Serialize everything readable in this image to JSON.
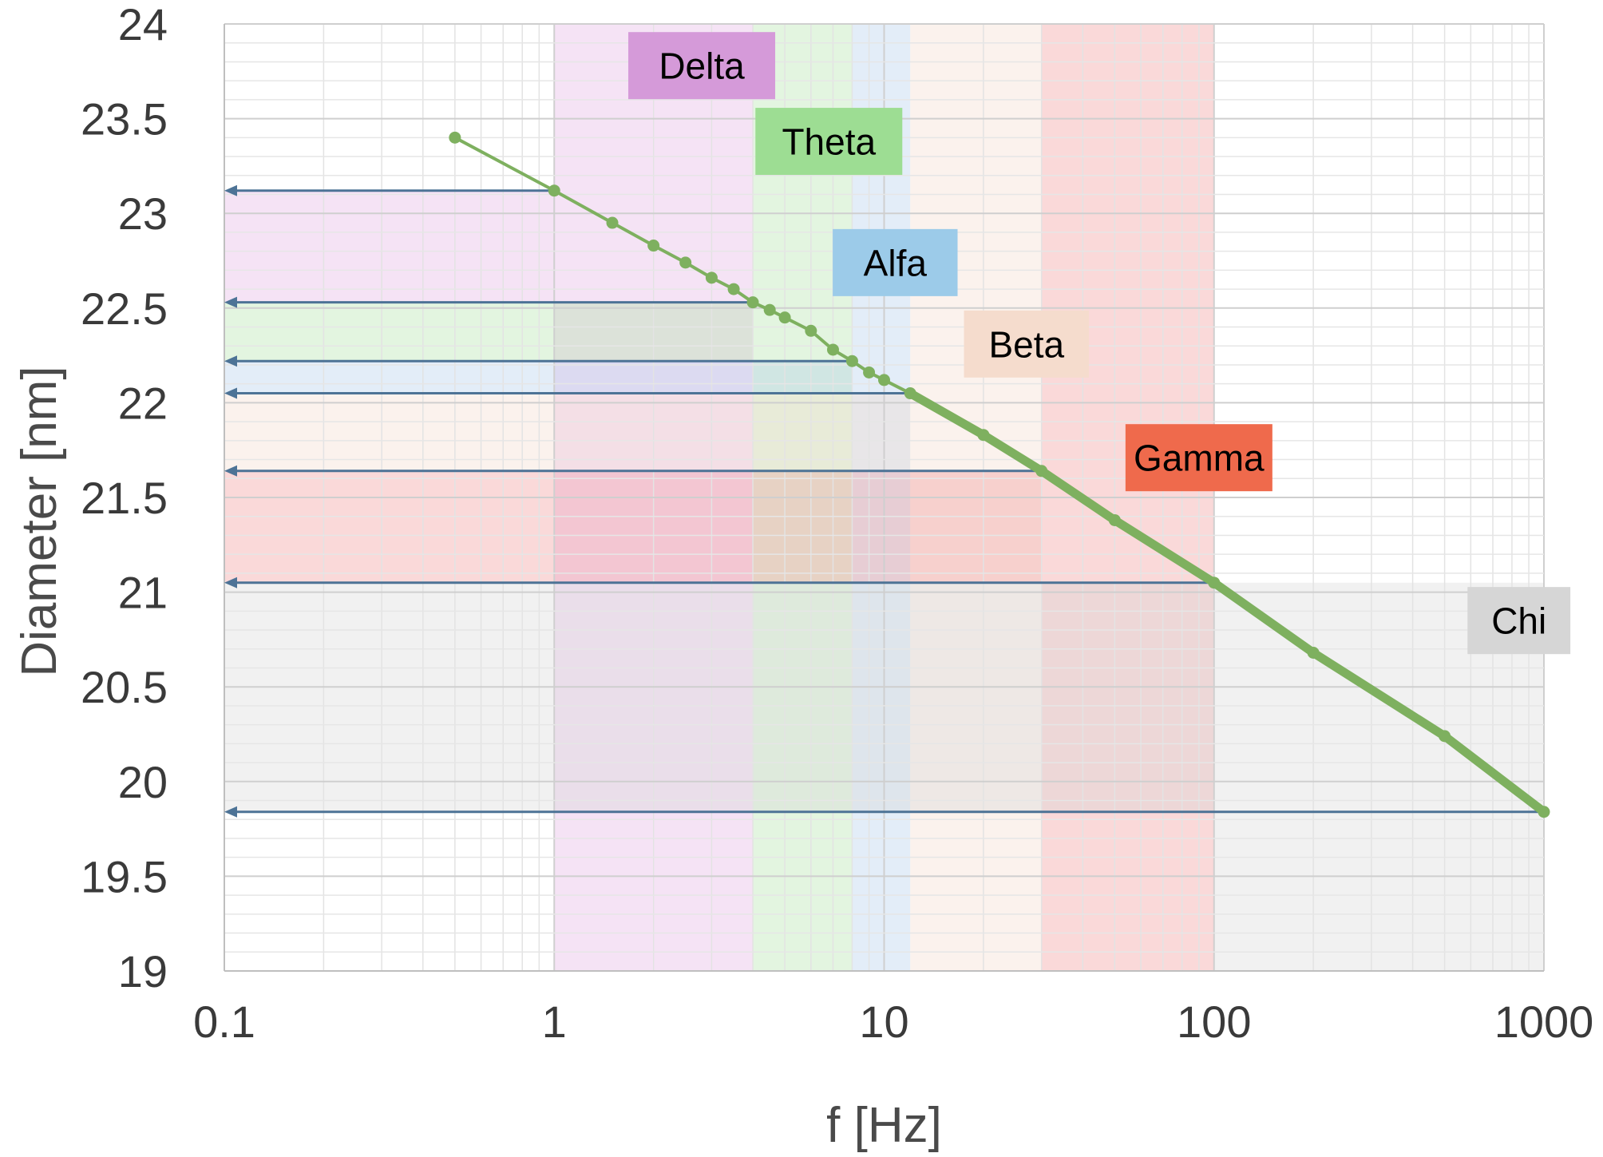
{
  "chart_data": {
    "type": "line",
    "xlabel": "f [Hz]",
    "ylabel": "Diameter [nm]",
    "x_scale": "log",
    "xlim": [
      0.1,
      1000
    ],
    "ylim": [
      19,
      24
    ],
    "grid": true,
    "x_ticks": [
      "0.1",
      "1",
      "10",
      "100",
      "1000"
    ],
    "x_tick_values": [
      0.1,
      1,
      10,
      100,
      1000
    ],
    "y_ticks": [
      "19",
      "19.5",
      "20",
      "20.5",
      "21",
      "21.5",
      "22",
      "22.5",
      "23",
      "23.5",
      "24"
    ],
    "y_tick_values": [
      19,
      19.5,
      20,
      20.5,
      21,
      21.5,
      22,
      22.5,
      23,
      23.5,
      24
    ],
    "bands": [
      {
        "label": "Delta",
        "fmin": 1,
        "fmax": 4,
        "dmin": 22.53,
        "dmax": 23.12,
        "color": "#e0a8e0",
        "label_color": "#d59ad9",
        "label_f": 2.8,
        "label_d": 23.78
      },
      {
        "label": "Theta",
        "fmin": 4,
        "fmax": 8,
        "dmin": 22.22,
        "dmax": 22.53,
        "color": "#a8e0a0",
        "label_color": "#9ddd93",
        "label_f": 6.8,
        "label_d": 23.38
      },
      {
        "label": "Alfa",
        "fmin": 8,
        "fmax": 12,
        "dmin": 22.05,
        "dmax": 22.22,
        "color": "#a8c8e8",
        "label_color": "#9ccbe9",
        "label_f": 10.8,
        "label_d": 22.74
      },
      {
        "label": "Beta",
        "fmin": 12,
        "fmax": 30,
        "dmin": 21.64,
        "dmax": 22.05,
        "color": "#f3d8c8",
        "label_color": "#f5dccd",
        "label_f": 27,
        "label_d": 22.31
      },
      {
        "label": "Gamma",
        "fmin": 30,
        "fmax": 100,
        "dmin": 21.05,
        "dmax": 21.64,
        "color": "#f08a88",
        "label_color": "#ef6a4c",
        "label_f": 90,
        "label_d": 21.71
      },
      {
        "label": "Chi",
        "fmin": 100,
        "fmax": 1000,
        "dmin": 19.84,
        "dmax": 21.05,
        "color": "#d4d4d4",
        "label_color": "#d6d6d6",
        "label_f": 840,
        "label_d": 20.85
      }
    ],
    "arrows": [
      {
        "f": 1,
        "d": 23.12
      },
      {
        "f": 4,
        "d": 22.53
      },
      {
        "f": 8,
        "d": 22.22
      },
      {
        "f": 12,
        "d": 22.05
      },
      {
        "f": 30,
        "d": 21.64
      },
      {
        "f": 100,
        "d": 21.05
      },
      {
        "f": 1000,
        "d": 19.84
      }
    ],
    "series": [
      {
        "x": [
          0.5,
          1,
          1.5,
          2,
          2.5,
          3,
          3.5,
          4,
          4.5,
          5,
          6,
          7,
          8,
          9,
          10,
          12,
          20,
          30,
          50,
          100,
          200,
          500,
          1000
        ],
        "y": [
          23.4,
          23.12,
          22.95,
          22.83,
          22.74,
          22.66,
          22.6,
          22.53,
          22.49,
          22.45,
          22.38,
          22.28,
          22.22,
          22.16,
          22.12,
          22.05,
          21.83,
          21.64,
          21.38,
          21.05,
          20.68,
          20.24,
          19.84
        ],
        "color": "#7eb05f"
      }
    ]
  }
}
